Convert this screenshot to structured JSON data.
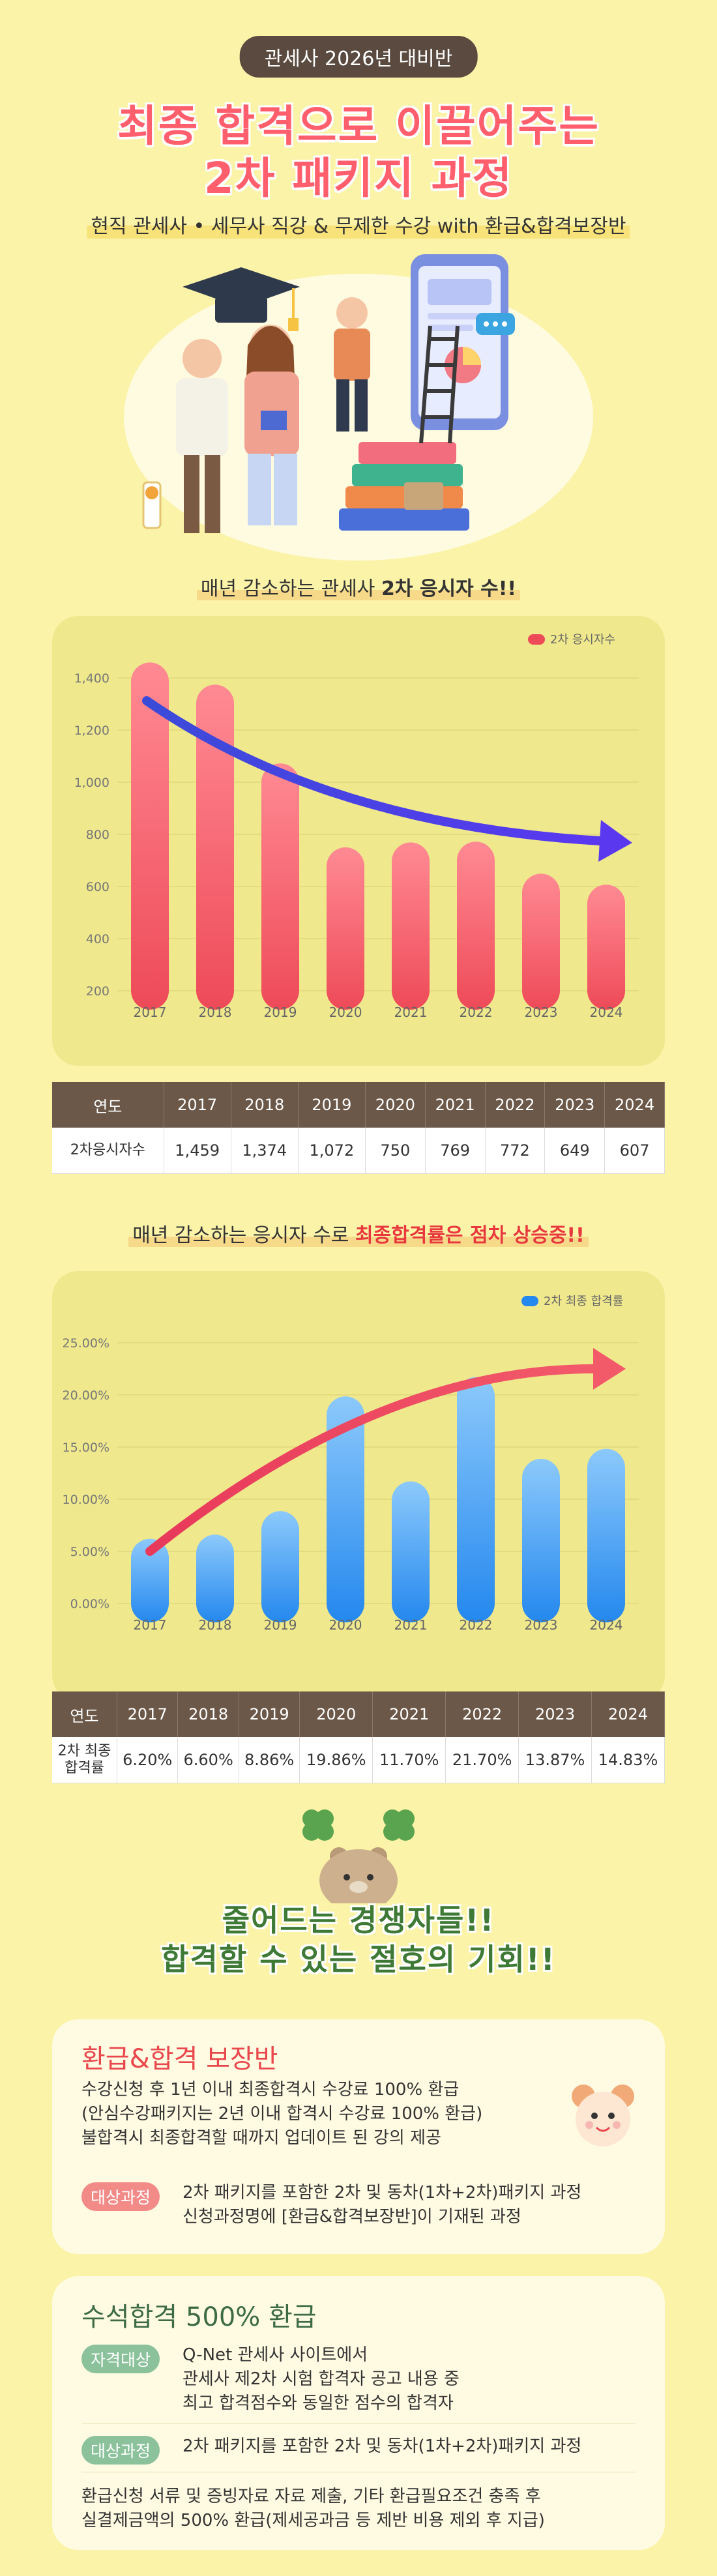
{
  "header": {
    "badge": "관세사 2026년 대비반",
    "title_line1": "최종 합격으로 이끌어주는",
    "title_line2": "2차 패키지 과정",
    "subtitle": "현직 관세사 • 세무사 직강 & 무제한 수강 with 환급&합격보장반"
  },
  "section1": {
    "heading_prefix": "매년 감소하는 관세사 ",
    "heading_bold": "2차 응시자 수!!"
  },
  "section2": {
    "heading_prefix": "매년 감소하는 응시자 수로 ",
    "heading_red": "최종합격률은 점차 상승중!!"
  },
  "colors": {
    "title_red": "#ff5f6d",
    "bar_red": "#f0505e",
    "bar_blue": "#2d8ef2",
    "arrow_purple": "#4a3bea",
    "arrow_red": "#e8395a",
    "panel_bg": "#efe88d",
    "page_bg": "#fbf3a8"
  },
  "chart_data": [
    {
      "type": "bar",
      "categories": [
        "2017",
        "2018",
        "2019",
        "2020",
        "2021",
        "2022",
        "2023",
        "2024"
      ],
      "series": [
        {
          "name": "2차 응시자수",
          "values": [
            1459,
            1374,
            1072,
            750,
            769,
            772,
            649,
            607
          ]
        }
      ],
      "yticks": [
        "200",
        "400",
        "600",
        "800",
        "1,000",
        "1,200",
        "1,400"
      ],
      "ylim": [
        200,
        1400
      ],
      "legend": "top-right",
      "grid": true
    },
    {
      "type": "bar",
      "categories": [
        "2017",
        "2018",
        "2019",
        "2020",
        "2021",
        "2022",
        "2023",
        "2024"
      ],
      "series": [
        {
          "name": "2차 최종 합격률",
          "values": [
            6.2,
            6.6,
            8.86,
            19.86,
            11.7,
            21.7,
            13.87,
            14.83
          ]
        }
      ],
      "yticks": [
        "0.00%",
        "5.00%",
        "10.00%",
        "15.00%",
        "20.00%",
        "25.00%"
      ],
      "ylim": [
        0,
        25
      ],
      "legend": "top-right",
      "grid": true
    }
  ],
  "table1": {
    "header_label": "연도",
    "years": [
      "2017",
      "2018",
      "2019",
      "2020",
      "2021",
      "2022",
      "2023",
      "2024"
    ],
    "row_label": "2차응시자수",
    "values": [
      "1,459",
      "1,374",
      "1,072",
      "750",
      "769",
      "772",
      "649",
      "607"
    ]
  },
  "table2": {
    "header_label": "연도",
    "years": [
      "2017",
      "2018",
      "2019",
      "2020",
      "2021",
      "2022",
      "2023",
      "2024"
    ],
    "row_label_1": "2차 최종",
    "row_label_2": "합격률",
    "values": [
      "6.20%",
      "6.60%",
      "8.86%",
      "19.86%",
      "11.70%",
      "21.70%",
      "13.87%",
      "14.83%"
    ]
  },
  "opportunity": {
    "line1": "줄어드는 경쟁자들!!",
    "line2": "합격할 수 있는 절호의 기회!!"
  },
  "refund_card": {
    "title": "환급&합격 보장반",
    "lines": [
      "수강신청 후 1년 이내 최종합격시 수강료 100% 환급",
      "(안심수강패키지는 2년 이내 합격시 수강료 100% 환급)",
      "불합격시 최종합격할 때까지 업데이트 된 강의 제공"
    ],
    "tag": "대상과정",
    "target_lines": [
      "2차 패키지를 포함한 2차 및 동차(1차+2차)패키지 과정",
      "신청과정명에 [환급&합격보장반]이 기재된 과정"
    ]
  },
  "top_card": {
    "title": "수석합격 500% 환급",
    "tag1": "자격대상",
    "qual_lines": [
      "Q-Net 관세사 사이트에서",
      "관세사 제2차 시험 합격자 공고 내용 중",
      "최고 합격점수와 동일한 점수의 합격자"
    ],
    "tag2": "대상과정",
    "target": "2차 패키지를 포함한 2차 및 동차(1차+2차)패키지 과정",
    "notes": [
      "환급신청 서류 및 증빙자료 자료 제출, 기타 환급필요조건 충족 후",
      "실결제금액의 500% 환급(제세공과금 등 제반 비용 제외 후 지급)"
    ]
  }
}
